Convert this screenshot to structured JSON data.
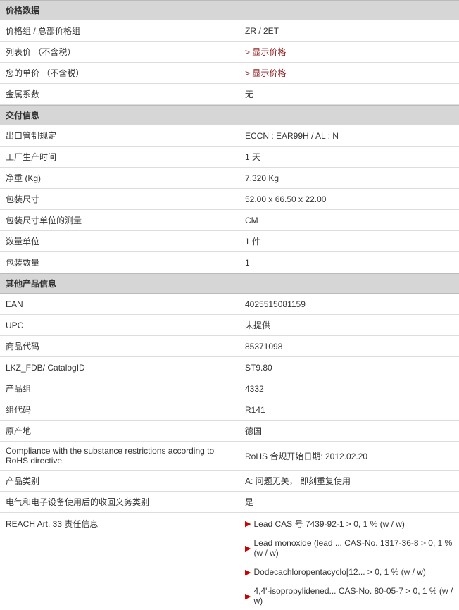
{
  "sections": {
    "price": {
      "title": "价格数据",
      "rows": [
        {
          "label": "价格组 / 总部价格组",
          "value": "ZR / 2ET",
          "link": false
        },
        {
          "label": "列表价 （不含税）",
          "value": "显示价格",
          "link": true
        },
        {
          "label": "您的单价 （不含税）",
          "value": "显示价格",
          "link": true
        },
        {
          "label": "金属系数",
          "value": "无",
          "link": false
        }
      ]
    },
    "delivery": {
      "title": "交付信息",
      "rows": [
        {
          "label": "出口管制规定",
          "value": "ECCN : EAR99H / AL : N",
          "link": false
        },
        {
          "label": "工厂生产时间",
          "value": "1 天",
          "link": false
        },
        {
          "label": "净重 (Kg)",
          "value": "7.320 Kg",
          "link": false
        },
        {
          "label": "包装尺寸",
          "value": "52.00 x 66.50 x 22.00",
          "link": false
        },
        {
          "label": "包装尺寸单位的测量",
          "value": "CM",
          "link": false
        },
        {
          "label": "数量单位",
          "value": "1 件",
          "link": false
        },
        {
          "label": "包装数量",
          "value": "1",
          "link": false
        }
      ]
    },
    "other": {
      "title": "其他产品信息",
      "rows": [
        {
          "label": "EAN",
          "value": "4025515081159",
          "link": false
        },
        {
          "label": "UPC",
          "value": "未提供",
          "link": false
        },
        {
          "label": "商品代码",
          "value": "85371098",
          "link": false
        },
        {
          "label": "LKZ_FDB/ CatalogID",
          "value": "ST9.80",
          "link": false
        },
        {
          "label": "产品组",
          "value": "4332",
          "link": false
        },
        {
          "label": "组代码",
          "value": "R141",
          "link": false
        },
        {
          "label": "原产地",
          "value": "德国",
          "link": false
        },
        {
          "label": "Compliance with the substance restrictions according to RoHS directive",
          "value": "RoHS 合规开始日期: 2012.02.20",
          "link": false
        },
        {
          "label": "产品类别",
          "value": "A: 问题无关， 即刻重复使用",
          "link": false
        },
        {
          "label": "电气和电子设备使用后的收回义务类别",
          "value": "是",
          "link": false
        }
      ]
    }
  },
  "reach": {
    "label": "REACH Art. 33 责任信息",
    "items": [
      "Lead CAS 号 7439-92-1 > 0, 1 % (w / w)",
      "Lead monoxide (lead ... CAS-No. 1317-36-8 > 0, 1 % (w / w)",
      "Dodecachloropentacyclo[12... > 0, 1 % (w / w)",
      "4,4'-isopropylidened... CAS-No. 80-05-7 > 0, 1 % (w / w)"
    ]
  },
  "link_prefix": "> "
}
